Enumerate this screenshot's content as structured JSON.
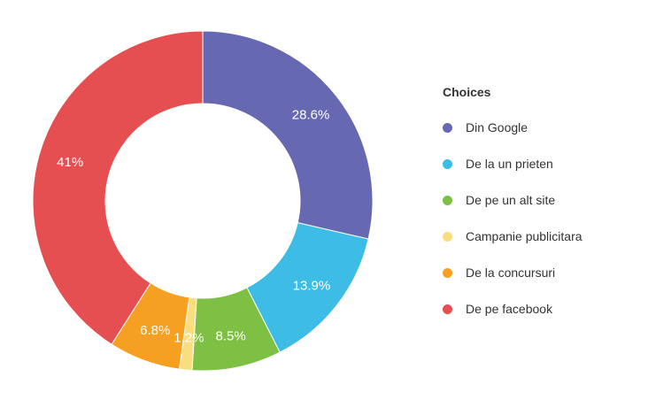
{
  "chart_data": {
    "type": "pie",
    "variant": "donut",
    "legend_title": "Choices",
    "legend_position": "right",
    "slices": [
      {
        "label": "Din Google",
        "value": 28.6,
        "value_label": "28.6%",
        "color": "#6669b2"
      },
      {
        "label": "De la un prieten",
        "value": 13.9,
        "value_label": "13.9%",
        "color": "#3dbce5"
      },
      {
        "label": "De pe un alt site",
        "value": 8.5,
        "value_label": "8.5%",
        "color": "#7ec043"
      },
      {
        "label": "Campanie publicitara",
        "value": 1.2,
        "value_label": "1.2%",
        "color": "#f9de7f"
      },
      {
        "label": "De la concursuri",
        "value": 6.8,
        "value_label": "6.8%",
        "color": "#f5a020"
      },
      {
        "label": "De pe facebook",
        "value": 41,
        "value_label": "41%",
        "color": "#e64f52"
      }
    ]
  }
}
